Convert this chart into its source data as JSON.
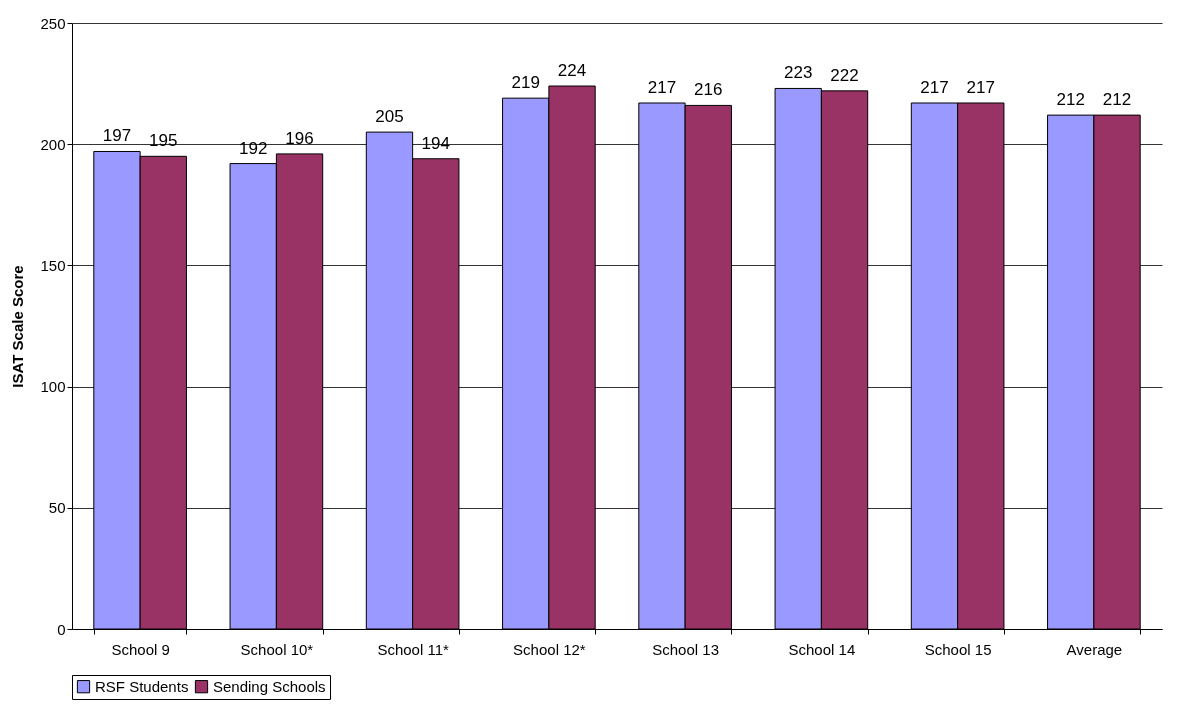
{
  "chart_data": {
    "type": "bar",
    "ylabel": "ISAT Scale Score",
    "categories": [
      "School 9",
      "School 10*",
      "School 11*",
      "School 12*",
      "School 13",
      "School 14",
      "School 15",
      "Average"
    ],
    "series": [
      {
        "name": "RSF Students",
        "color": "#9999ff",
        "values": [
          197,
          192,
          205,
          219,
          217,
          223,
          217,
          212
        ]
      },
      {
        "name": "Sending Schools",
        "color": "#993366",
        "values": [
          195,
          196,
          194,
          224,
          216,
          222,
          217,
          212
        ]
      }
    ],
    "ylim": [
      0,
      250
    ],
    "yticks": [
      0,
      50,
      100,
      150,
      200,
      250
    ],
    "grid": "y",
    "legend": "bottom",
    "data_labels": true
  }
}
